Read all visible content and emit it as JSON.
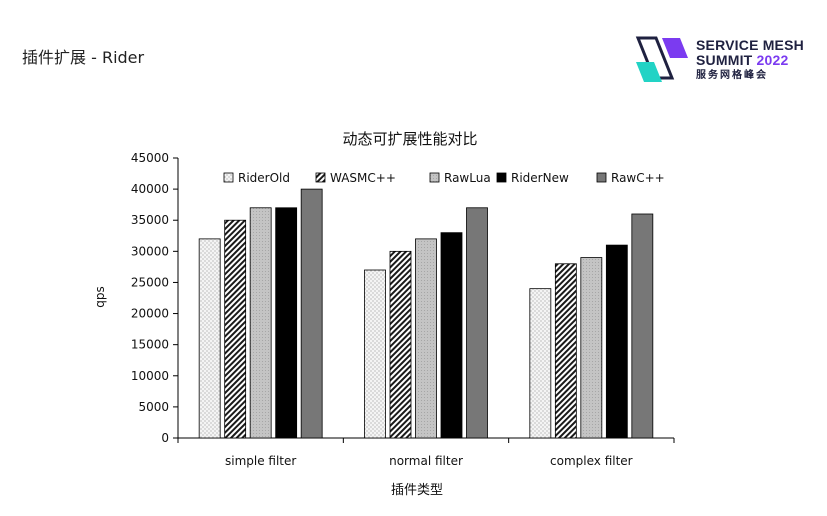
{
  "header": {
    "title": "插件扩展 - Rider"
  },
  "logo": {
    "line1": "SERVICE MESH",
    "line2_prefix": "SUMMIT",
    "line2_year": "2022",
    "line3": "服务网格峰会",
    "colors": {
      "purple": "#7b3bf0",
      "cyan": "#22d3c5",
      "navy": "#1f2140"
    }
  },
  "chart_data": {
    "type": "bar",
    "title": "动态可扩展性能对比",
    "xlabel": "插件类型",
    "ylabel": "qps",
    "ylim": [
      0,
      45000
    ],
    "yticks": [
      0,
      5000,
      10000,
      15000,
      20000,
      25000,
      30000,
      35000,
      40000,
      45000
    ],
    "categories": [
      "simple filter",
      "normal filter",
      "complex filter"
    ],
    "legend_position": "top-inside",
    "grid": false,
    "series": [
      {
        "name": "RiderOld",
        "values": [
          32000,
          27000,
          24000
        ],
        "color": "#f2f2f2",
        "pattern": "dots"
      },
      {
        "name": "WASMC++",
        "values": [
          35000,
          30000,
          28000
        ],
        "color": "#ffffff",
        "pattern": "diagonal"
      },
      {
        "name": "RawLua",
        "values": [
          37000,
          32000,
          29000
        ],
        "color": "#c8c8c8",
        "pattern": "fine"
      },
      {
        "name": "RiderNew",
        "values": [
          37000,
          33000,
          31000
        ],
        "color": "#000000",
        "pattern": "solid"
      },
      {
        "name": "RawC++",
        "values": [
          40000,
          37000,
          36000
        ],
        "color": "#777777",
        "pattern": "solid"
      }
    ]
  }
}
